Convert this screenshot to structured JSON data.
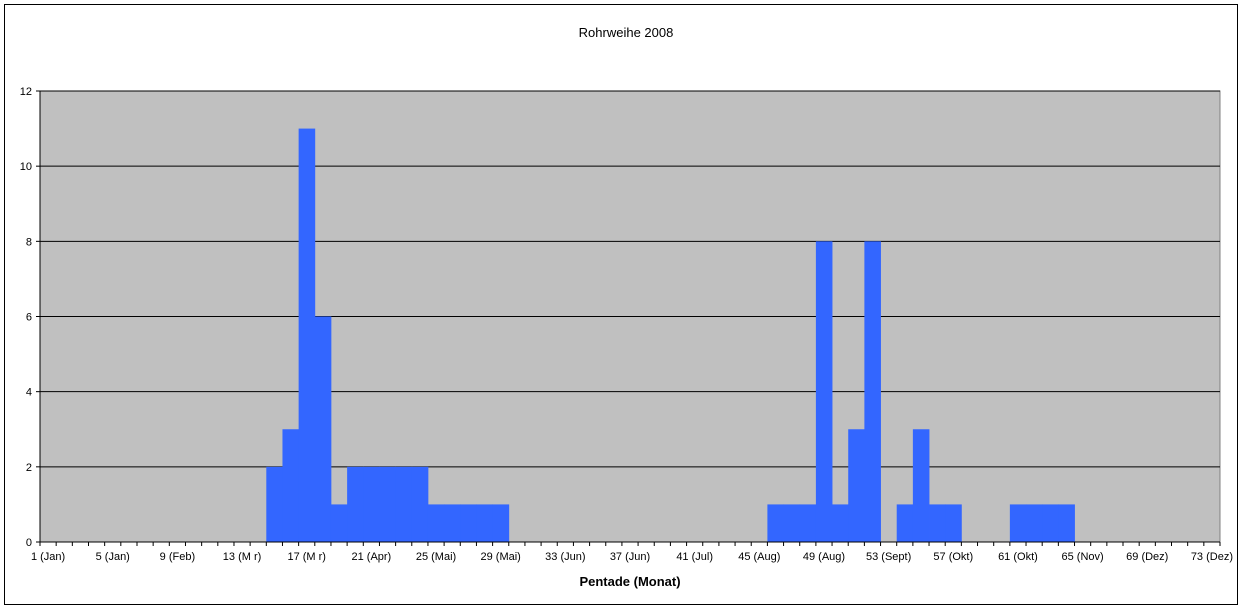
{
  "chart_data": {
    "type": "bar",
    "title": "Rohrweihe 2008",
    "xlabel": "Pentade (Monat)",
    "ylabel": "",
    "ylim": [
      0,
      12
    ],
    "yticks": [
      0,
      2,
      4,
      6,
      8,
      10,
      12
    ],
    "grid": true,
    "legend": "none",
    "x_range": [
      1,
      73
    ],
    "x_tick_labels": [
      {
        "x": 1,
        "label": "1 (Jan)"
      },
      {
        "x": 5,
        "label": "5 (Jan)"
      },
      {
        "x": 9,
        "label": "9 (Feb)"
      },
      {
        "x": 13,
        "label": "13 (M   r)"
      },
      {
        "x": 17,
        "label": "17 (M   r)"
      },
      {
        "x": 21,
        "label": "21 (Apr)"
      },
      {
        "x": 25,
        "label": "25 (Mai)"
      },
      {
        "x": 29,
        "label": "29 (Mai)"
      },
      {
        "x": 33,
        "label": "33 (Jun)"
      },
      {
        "x": 37,
        "label": "37 (Jun)"
      },
      {
        "x": 41,
        "label": "41 (Jul)"
      },
      {
        "x": 45,
        "label": "45 (Aug)"
      },
      {
        "x": 49,
        "label": "49 (Aug)"
      },
      {
        "x": 53,
        "label": "53 (Sept)"
      },
      {
        "x": 57,
        "label": "57 (Okt)"
      },
      {
        "x": 61,
        "label": "61 (Okt)"
      },
      {
        "x": 65,
        "label": "65 (Nov)"
      },
      {
        "x": 69,
        "label": "69 (Dez)"
      },
      {
        "x": 73,
        "label": "73 (Dez)"
      }
    ],
    "x": [
      15,
      16,
      17,
      18,
      19,
      20,
      21,
      22,
      23,
      24,
      25,
      26,
      27,
      28,
      29,
      46,
      47,
      48,
      49,
      50,
      51,
      52,
      54,
      55,
      56,
      57,
      61,
      62,
      63,
      64
    ],
    "values": [
      2,
      3,
      11,
      6,
      1,
      2,
      2,
      2,
      2,
      2,
      1,
      1,
      1,
      1,
      1,
      1,
      1,
      1,
      8,
      1,
      3,
      8,
      1,
      3,
      1,
      1,
      1,
      1,
      1,
      1
    ],
    "colors": {
      "bar": "#3366ff",
      "plot_background": "#c0c0c0",
      "gridline": "#000000"
    }
  }
}
